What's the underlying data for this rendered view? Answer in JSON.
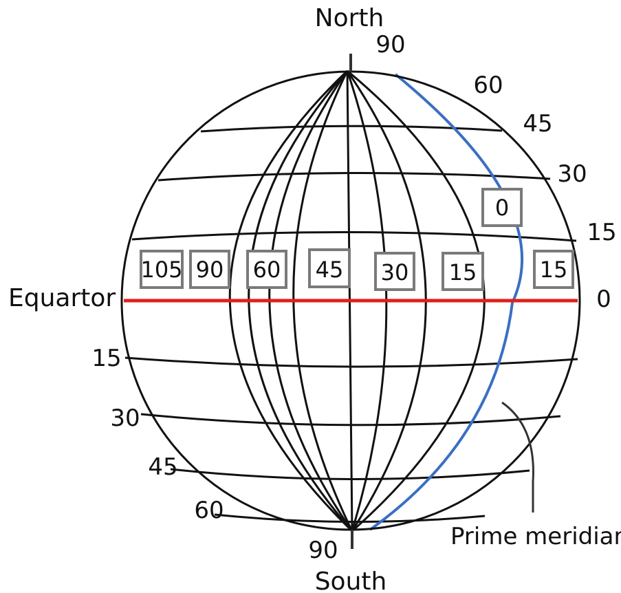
{
  "labels": {
    "north": "North",
    "south": "South",
    "equator": "Equartor",
    "prime_meridian": "Prime meridian"
  },
  "latitude_right": [
    "90",
    "60",
    "45",
    "30",
    "15",
    "0"
  ],
  "latitude_left": [
    "15",
    "30",
    "45",
    "60",
    "90"
  ],
  "longitude_boxes": [
    "105",
    "90",
    "60",
    "45",
    "30",
    "15",
    "0",
    "15"
  ],
  "colors": {
    "equator": "#e0201b",
    "prime_meridian": "#3a6fc4",
    "grid": "#111111",
    "box_border": "#7a7a7a"
  }
}
